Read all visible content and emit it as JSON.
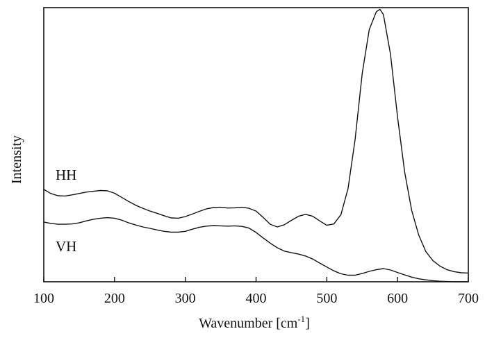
{
  "chart_data": {
    "type": "line",
    "xlabel": "Wavenumber [cm",
    "xlabel_sup": "-1",
    "xlabel_close": "]",
    "ylabel": "Intensity",
    "xlim": [
      100,
      700
    ],
    "ylim": [
      0,
      1
    ],
    "x_ticks": [
      100,
      200,
      300,
      400,
      500,
      600,
      700
    ],
    "x_tick_labels": [
      "100",
      "200",
      "300",
      "400",
      "500",
      "600",
      "700"
    ],
    "grid": false,
    "legend": "none",
    "series": [
      {
        "name": "HH",
        "color": "#111111",
        "x": [
          100,
          110,
          120,
          130,
          140,
          150,
          160,
          170,
          180,
          190,
          200,
          210,
          220,
          230,
          240,
          250,
          260,
          270,
          280,
          290,
          300,
          310,
          320,
          330,
          340,
          350,
          360,
          370,
          380,
          390,
          400,
          410,
          420,
          430,
          440,
          450,
          460,
          470,
          480,
          490,
          500,
          510,
          520,
          530,
          540,
          550,
          560,
          570,
          575,
          580,
          590,
          600,
          610,
          620,
          630,
          640,
          650,
          660,
          670,
          680,
          690,
          700
        ],
        "values": [
          0.337,
          0.322,
          0.314,
          0.313,
          0.317,
          0.322,
          0.327,
          0.33,
          0.333,
          0.332,
          0.323,
          0.308,
          0.293,
          0.279,
          0.268,
          0.258,
          0.25,
          0.241,
          0.233,
          0.232,
          0.238,
          0.247,
          0.257,
          0.266,
          0.271,
          0.272,
          0.269,
          0.27,
          0.272,
          0.268,
          0.258,
          0.235,
          0.21,
          0.2,
          0.208,
          0.224,
          0.239,
          0.246,
          0.239,
          0.222,
          0.206,
          0.211,
          0.245,
          0.34,
          0.52,
          0.76,
          0.92,
          0.985,
          0.994,
          0.975,
          0.83,
          0.6,
          0.4,
          0.26,
          0.17,
          0.11,
          0.077,
          0.057,
          0.044,
          0.037,
          0.033,
          0.032
        ]
      },
      {
        "name": "VH",
        "color": "#111111",
        "x": [
          100,
          110,
          120,
          130,
          140,
          150,
          160,
          170,
          180,
          190,
          200,
          210,
          220,
          230,
          240,
          250,
          260,
          270,
          280,
          290,
          300,
          310,
          320,
          330,
          340,
          350,
          360,
          370,
          380,
          390,
          400,
          410,
          420,
          430,
          440,
          450,
          460,
          470,
          480,
          490,
          500,
          510,
          520,
          530,
          540,
          550,
          560,
          570,
          580,
          590,
          600,
          610,
          620,
          630,
          640,
          650,
          660,
          670,
          680,
          690,
          700
        ],
        "values": [
          0.218,
          0.213,
          0.21,
          0.21,
          0.211,
          0.215,
          0.222,
          0.228,
          0.232,
          0.234,
          0.232,
          0.225,
          0.215,
          0.207,
          0.2,
          0.195,
          0.189,
          0.184,
          0.181,
          0.181,
          0.184,
          0.192,
          0.199,
          0.203,
          0.205,
          0.204,
          0.203,
          0.204,
          0.202,
          0.196,
          0.18,
          0.16,
          0.141,
          0.124,
          0.112,
          0.106,
          0.101,
          0.094,
          0.083,
          0.068,
          0.054,
          0.04,
          0.029,
          0.024,
          0.024,
          0.03,
          0.038,
          0.044,
          0.048,
          0.043,
          0.034,
          0.025,
          0.017,
          0.011,
          0.007,
          0.004,
          0.002,
          0.001,
          0.0,
          0.0,
          0.0
        ]
      }
    ]
  }
}
